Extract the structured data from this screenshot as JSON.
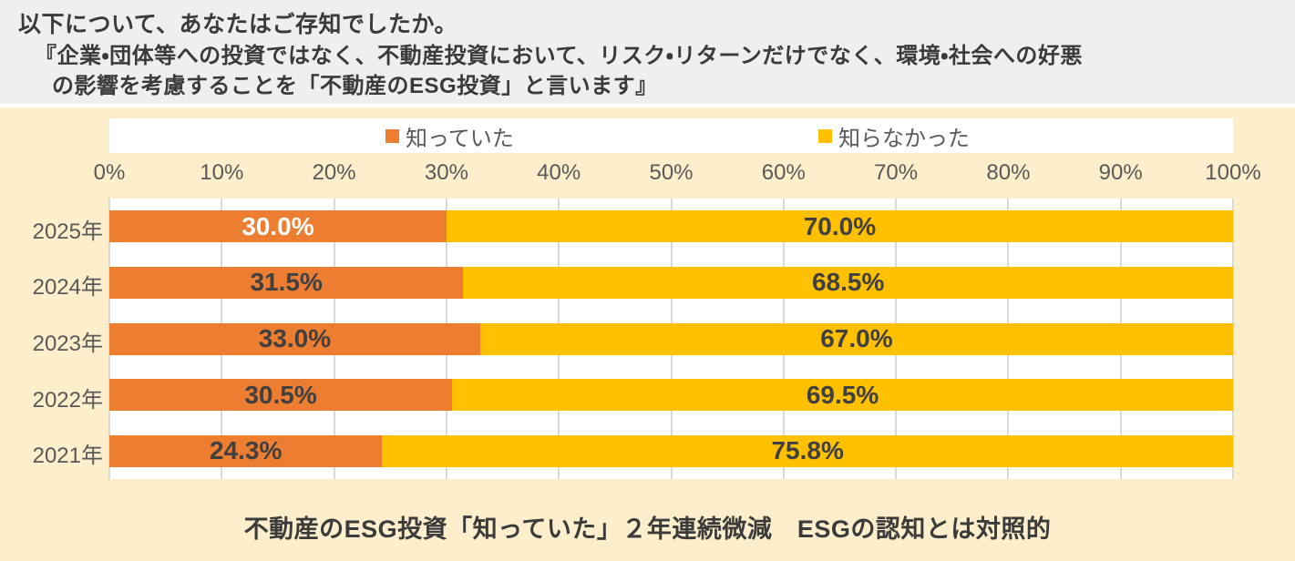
{
  "header": {
    "line1": "以下について、あなたはご存知でしたか。",
    "line2": "『企業・団体等への投資ではなく、不動産投資において、リスク・リターンだけでなく、環境・社会への好悪",
    "line3": "の影響を考慮することを「不動産のESG投資」と言います』"
  },
  "legend": [
    {
      "label": "知っていた",
      "color": "#ed7d31"
    },
    {
      "label": "知らなかった",
      "color": "#ffc000"
    }
  ],
  "chart_data": {
    "type": "bar",
    "orientation": "horizontal",
    "stacked": true,
    "title": "",
    "xlabel": "",
    "ylabel": "",
    "xlim": [
      0,
      100
    ],
    "grid": true,
    "legend_position": "top",
    "axis_ticks": [
      "0%",
      "10%",
      "20%",
      "30%",
      "40%",
      "50%",
      "60%",
      "70%",
      "80%",
      "90%",
      "100%"
    ],
    "categories": [
      "2025年",
      "2024年",
      "2023年",
      "2022年",
      "2021年"
    ],
    "series": [
      {
        "name": "知っていた",
        "color": "#ed7d31",
        "values": [
          30.0,
          31.5,
          33.0,
          30.5,
          24.3
        ]
      },
      {
        "name": "知らなかった",
        "color": "#ffc000",
        "values": [
          70.0,
          68.5,
          67.0,
          69.5,
          75.8
        ]
      }
    ],
    "value_labels": [
      [
        "30.0%",
        "70.0%"
      ],
      [
        "31.5%",
        "68.5%"
      ],
      [
        "33.0%",
        "67.0%"
      ],
      [
        "30.5%",
        "69.5%"
      ],
      [
        "24.3%",
        "75.8%"
      ]
    ],
    "knew_label_colors": [
      "#ffffff",
      "#404040",
      "#404040",
      "#404040",
      "#404040"
    ],
    "unknown_label_color": "#404040"
  },
  "caption": "不動産のESG投資「知っていた」２年連続微減　ESGの認知とは対照的",
  "colors": {
    "header_bg": "#efefef",
    "panel_bg": "#fdefcb",
    "plot_bg": "#ffffff",
    "gridline": "#d9d9d9",
    "axis_text": "#595959",
    "orange": "#ed7d31",
    "yellow": "#ffc000",
    "value_text_dark": "#404040",
    "header_text": "#3a3a3a"
  }
}
